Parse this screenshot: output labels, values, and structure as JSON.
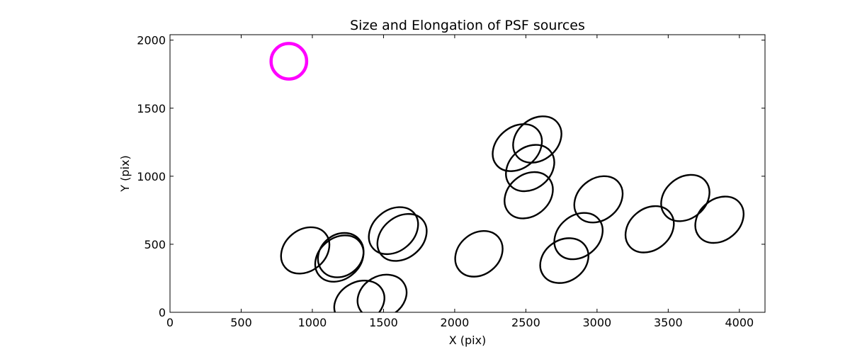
{
  "chart_data": {
    "type": "scatter",
    "title": "Size and Elongation of PSF sources",
    "xlabel": "X (pix)",
    "ylabel": "Y (pix)",
    "xlim": [
      0,
      4180
    ],
    "ylim": [
      0,
      2040
    ],
    "xticks": [
      0,
      500,
      1000,
      1500,
      2000,
      2500,
      3000,
      3500,
      4000
    ],
    "yticks": [
      0,
      500,
      1000,
      1500,
      2000
    ],
    "grid": false,
    "colors": {
      "source": "#000000",
      "reference": "#ff00ff"
    },
    "reference_marker": {
      "x": 835,
      "y": 1845,
      "a": 250,
      "b": 250,
      "angle": 0
    },
    "sources": [
      {
        "x": 950,
        "y": 455,
        "a": 370,
        "b": 290,
        "angle": 40
      },
      {
        "x": 1190,
        "y": 395,
        "a": 370,
        "b": 290,
        "angle": 40
      },
      {
        "x": 1200,
        "y": 420,
        "a": 340,
        "b": 290,
        "angle": 40
      },
      {
        "x": 1330,
        "y": 70,
        "a": 370,
        "b": 290,
        "angle": 30
      },
      {
        "x": 1490,
        "y": 115,
        "a": 360,
        "b": 290,
        "angle": 30
      },
      {
        "x": 1570,
        "y": 600,
        "a": 380,
        "b": 290,
        "angle": 40
      },
      {
        "x": 1630,
        "y": 550,
        "a": 380,
        "b": 290,
        "angle": 40
      },
      {
        "x": 2170,
        "y": 430,
        "a": 360,
        "b": 290,
        "angle": 40
      },
      {
        "x": 2440,
        "y": 1210,
        "a": 380,
        "b": 290,
        "angle": 40
      },
      {
        "x": 2530,
        "y": 1060,
        "a": 370,
        "b": 290,
        "angle": 40
      },
      {
        "x": 2580,
        "y": 1270,
        "a": 370,
        "b": 290,
        "angle": 40
      },
      {
        "x": 2520,
        "y": 860,
        "a": 370,
        "b": 290,
        "angle": 40
      },
      {
        "x": 2770,
        "y": 380,
        "a": 360,
        "b": 290,
        "angle": 35
      },
      {
        "x": 2870,
        "y": 560,
        "a": 370,
        "b": 290,
        "angle": 40
      },
      {
        "x": 3010,
        "y": 830,
        "a": 370,
        "b": 290,
        "angle": 40
      },
      {
        "x": 3370,
        "y": 610,
        "a": 370,
        "b": 290,
        "angle": 40
      },
      {
        "x": 3620,
        "y": 840,
        "a": 370,
        "b": 290,
        "angle": 40
      },
      {
        "x": 3860,
        "y": 680,
        "a": 370,
        "b": 290,
        "angle": 40
      }
    ]
  }
}
